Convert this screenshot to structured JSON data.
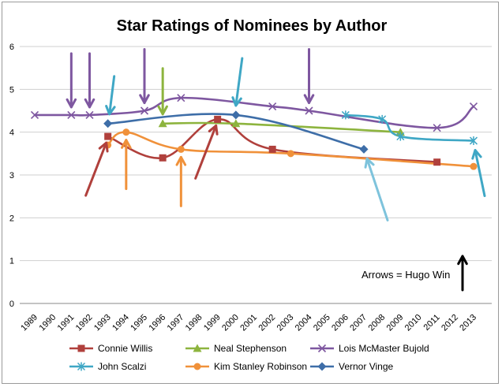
{
  "chart_data": {
    "type": "line",
    "title": "Star Ratings of Nominees by Author",
    "xlabel": "",
    "ylabel": "",
    "xlim": [
      1989,
      2013
    ],
    "ylim": [
      0,
      6
    ],
    "x_ticks": [
      "1989",
      "1990",
      "1991",
      "1992",
      "1993",
      "1994",
      "1995",
      "1996",
      "1997",
      "1998",
      "1999",
      "2000",
      "2001",
      "2002",
      "2003",
      "2004",
      "2005",
      "2006",
      "2007",
      "2008",
      "2009",
      "2010",
      "2011",
      "2012",
      "2013"
    ],
    "y_ticks": [
      "0",
      "1",
      "2",
      "3",
      "4",
      "5",
      "6"
    ],
    "grid": "horizontal",
    "legend_position": "bottom",
    "annotation": "Arrows = Hugo Win",
    "series": [
      {
        "name": "Connie Willis",
        "color": "#b0403c",
        "marker": "square",
        "points": [
          [
            1993,
            3.9
          ],
          [
            1996,
            3.4
          ],
          [
            1999,
            4.3
          ],
          [
            2002,
            3.6
          ],
          [
            2011,
            3.3
          ]
        ],
        "hugo_wins": [
          1993,
          1999
        ]
      },
      {
        "name": "Neal Stephenson",
        "color": "#8db43e",
        "marker": "triangle",
        "points": [
          [
            1996,
            4.2
          ],
          [
            2000,
            4.2
          ],
          [
            2009,
            4.0
          ]
        ],
        "hugo_wins": [
          1996
        ]
      },
      {
        "name": "Lois McMaster  Bujold",
        "color": "#7e57a0",
        "marker": "x",
        "points": [
          [
            1989,
            4.4
          ],
          [
            1991,
            4.4
          ],
          [
            1992,
            4.4
          ],
          [
            1995,
            4.5
          ],
          [
            1997,
            4.8
          ],
          [
            2002,
            4.6
          ],
          [
            2004,
            4.5
          ],
          [
            2011,
            4.1
          ],
          [
            2013,
            4.6
          ]
        ],
        "hugo_wins": [
          1991,
          1992,
          1995,
          2004
        ]
      },
      {
        "name": "John Scalzi",
        "color": "#3fa7c5",
        "marker": "asterisk",
        "points": [
          [
            2006,
            4.4
          ],
          [
            2008,
            4.3
          ],
          [
            2009,
            3.9
          ],
          [
            2013,
            3.8
          ]
        ],
        "hugo_wins": [
          2013
        ]
      },
      {
        "name": "Kim Stanley Robinson",
        "color": "#f0913a",
        "marker": "circle",
        "points": [
          [
            1993,
            3.7
          ],
          [
            1994,
            4.0
          ],
          [
            1997,
            3.6
          ],
          [
            2003,
            3.5
          ],
          [
            2013,
            3.2
          ]
        ],
        "hugo_wins": [
          1994,
          1997
        ]
      },
      {
        "name": "Vernor Vinge",
        "color": "#3e6ea8",
        "marker": "diamond",
        "points": [
          [
            1993,
            4.2
          ],
          [
            2000,
            4.4
          ],
          [
            2007,
            3.6
          ]
        ],
        "hugo_wins": [
          1993,
          2000,
          2007
        ]
      }
    ]
  }
}
